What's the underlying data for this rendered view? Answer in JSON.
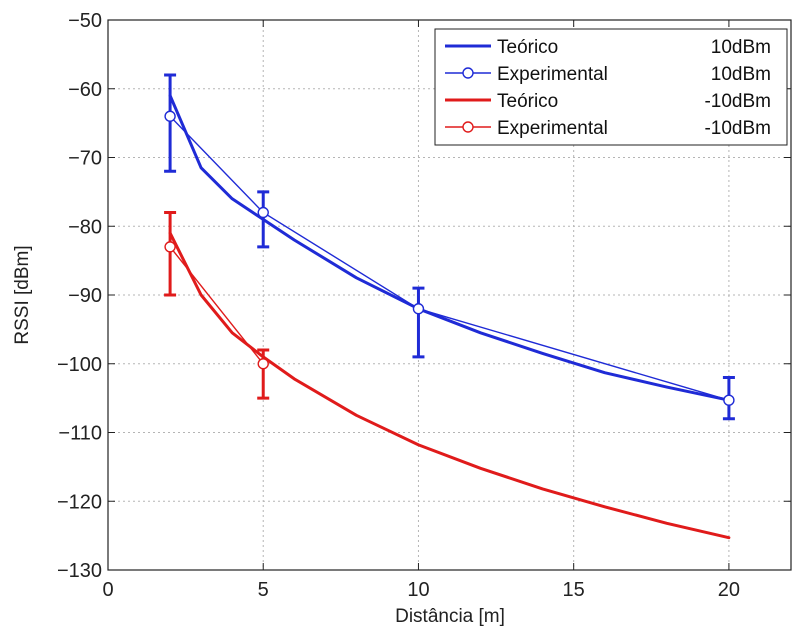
{
  "chart_data": {
    "type": "line",
    "xlabel": "Distância [m]",
    "ylabel": "RSSI [dBm]",
    "xlim": [
      0,
      22
    ],
    "ylim": [
      -130,
      -50
    ],
    "xticks": [
      0,
      5,
      10,
      15,
      20
    ],
    "yticks": [
      -50,
      -60,
      -70,
      -80,
      -90,
      -100,
      -110,
      -120,
      -130
    ],
    "grid": true,
    "legend_position": "top-right",
    "colors": {
      "blue": "#1f2bd6",
      "red": "#e01b1b"
    },
    "series": [
      {
        "name": "Teórico",
        "power": "10dBm",
        "kind": "theoretical",
        "color": "#1f2bd6",
        "x": [
          2,
          3,
          4,
          5,
          6,
          8,
          10,
          12,
          14,
          16,
          18,
          20
        ],
        "y": [
          -61,
          -71.5,
          -76,
          -79,
          -82,
          -87.5,
          -92,
          -95.5,
          -98.5,
          -101.3,
          -103.4,
          -105.3
        ]
      },
      {
        "name": "Experimental",
        "power": "10dBm",
        "kind": "experimental",
        "color": "#1f2bd6",
        "x": [
          2,
          5,
          10,
          20
        ],
        "y": [
          -64,
          -78,
          -92,
          -105.3
        ],
        "err_low": [
          -72,
          -83,
          -99,
          -108
        ],
        "err_high": [
          -58,
          -75,
          -89,
          -102
        ]
      },
      {
        "name": "Teórico",
        "power": "-10dBm",
        "kind": "theoretical",
        "color": "#e01b1b",
        "x": [
          2,
          3,
          4,
          5,
          6,
          8,
          10,
          12,
          14,
          16,
          18,
          20
        ],
        "y": [
          -81,
          -90,
          -95.5,
          -99,
          -102.2,
          -107.5,
          -111.8,
          -115.2,
          -118.2,
          -120.8,
          -123.2,
          -125.3
        ]
      },
      {
        "name": "Experimental",
        "power": "-10dBm",
        "kind": "experimental",
        "color": "#e01b1b",
        "x": [
          2,
          5
        ],
        "y": [
          -83,
          -100
        ],
        "err_low": [
          -90,
          -105
        ],
        "err_high": [
          -78,
          -98
        ]
      }
    ]
  }
}
